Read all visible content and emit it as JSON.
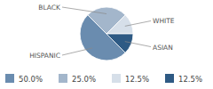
{
  "chart_data": {
    "type": "pie",
    "categories": [
      "HISPANIC",
      "BLACK",
      "WHITE",
      "ASIAN"
    ],
    "values": [
      50,
      25,
      12.5,
      12.5
    ],
    "value_labels": [
      "50.0%",
      "25.0%",
      "12.5%",
      "12.5%"
    ],
    "colors": [
      "#6a8caf",
      "#a3b6cb",
      "#d6dfe9",
      "#2e5a84"
    ],
    "legend": "bottom"
  }
}
